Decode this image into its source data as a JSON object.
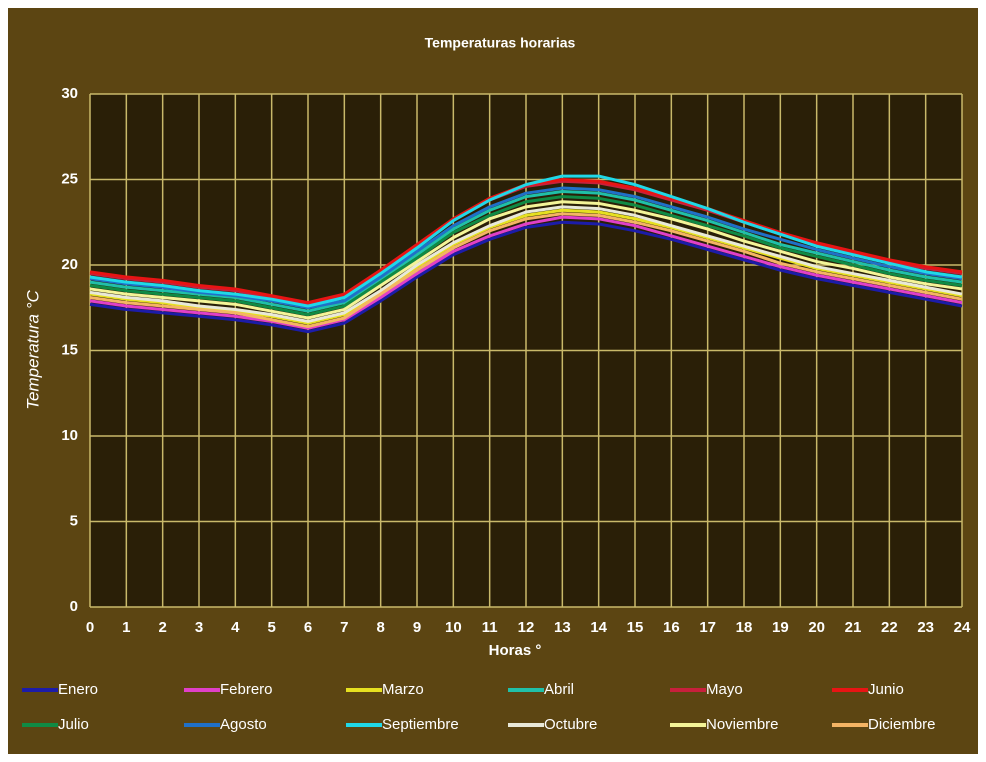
{
  "chart_data": {
    "type": "line",
    "title": "Temperaturas horarias",
    "x_label": "Horas °",
    "y_label": "Temperatura °C",
    "x": [
      0,
      1,
      2,
      3,
      4,
      5,
      6,
      7,
      8,
      9,
      10,
      11,
      12,
      13,
      14,
      15,
      16,
      17,
      18,
      19,
      20,
      21,
      22,
      23,
      24
    ],
    "xlim": [
      0,
      24
    ],
    "xticks": [
      0,
      1,
      2,
      3,
      4,
      5,
      6,
      7,
      8,
      9,
      10,
      11,
      12,
      13,
      14,
      15,
      16,
      17,
      18,
      19,
      20,
      21,
      22,
      23,
      24
    ],
    "ylim": [
      0,
      30
    ],
    "yticks": [
      0,
      5,
      10,
      15,
      20,
      25,
      30
    ],
    "grid": true,
    "legend": "bottom",
    "series": [
      {
        "name": "Enero",
        "color": "#1c1ca8",
        "values": [
          17.7,
          17.4,
          17.2,
          17.0,
          16.8,
          16.5,
          16.1,
          16.6,
          17.9,
          19.3,
          20.6,
          21.5,
          22.2,
          22.5,
          22.4,
          22.0,
          21.5,
          20.9,
          20.3,
          19.7,
          19.2,
          18.8,
          18.4,
          18.0,
          17.6
        ]
      },
      {
        "name": "Febrero",
        "color": "#e040c8",
        "values": [
          17.9,
          17.6,
          17.4,
          17.2,
          17.0,
          16.7,
          16.3,
          16.8,
          18.1,
          19.5,
          20.8,
          21.7,
          22.4,
          22.8,
          22.7,
          22.3,
          21.7,
          21.1,
          20.5,
          19.9,
          19.4,
          19.0,
          18.6,
          18.2,
          17.8
        ]
      },
      {
        "name": "Marzo",
        "color": "#e6e020",
        "values": [
          18.3,
          18.0,
          17.8,
          17.5,
          17.3,
          17.0,
          16.6,
          17.1,
          18.4,
          19.9,
          21.2,
          22.2,
          22.9,
          23.2,
          23.1,
          22.7,
          22.2,
          21.6,
          21.0,
          20.4,
          19.8,
          19.4,
          19.0,
          18.6,
          18.2
        ]
      },
      {
        "name": "Abril",
        "color": "#20c0a8",
        "values": [
          19.0,
          18.7,
          18.5,
          18.3,
          18.1,
          17.7,
          17.3,
          17.8,
          19.2,
          20.6,
          22.1,
          23.2,
          24.0,
          24.3,
          24.2,
          23.8,
          23.2,
          22.6,
          21.9,
          21.2,
          20.7,
          20.2,
          19.7,
          19.3,
          19.0
        ]
      },
      {
        "name": "Mayo",
        "color": "#c8203c",
        "values": [
          19.5,
          19.2,
          19.0,
          18.7,
          18.5,
          18.1,
          17.7,
          18.2,
          19.6,
          21.1,
          22.6,
          23.8,
          24.6,
          24.9,
          24.8,
          24.4,
          23.8,
          23.2,
          22.5,
          21.8,
          21.2,
          20.7,
          20.2,
          19.8,
          19.5
        ]
      },
      {
        "name": "Junio",
        "color": "#e81414",
        "values": [
          19.6,
          19.3,
          19.1,
          18.8,
          18.6,
          18.2,
          17.8,
          18.3,
          19.7,
          21.2,
          22.7,
          23.9,
          24.7,
          25.0,
          24.9,
          24.5,
          23.9,
          23.3,
          22.6,
          21.9,
          21.3,
          20.8,
          20.3,
          19.9,
          19.6
        ]
      },
      {
        "name": "Julio",
        "color": "#108a44",
        "values": [
          18.8,
          18.5,
          18.3,
          18.1,
          17.9,
          17.5,
          17.1,
          17.6,
          19.0,
          20.4,
          21.9,
          22.9,
          23.7,
          24.0,
          23.9,
          23.5,
          22.9,
          22.3,
          21.7,
          21.0,
          20.5,
          20.0,
          19.5,
          19.1,
          18.8
        ]
      },
      {
        "name": "Agosto",
        "color": "#2070c8",
        "values": [
          19.2,
          18.9,
          18.7,
          18.4,
          18.2,
          17.9,
          17.5,
          17.9,
          19.3,
          20.8,
          22.3,
          23.4,
          24.2,
          24.5,
          24.4,
          24.0,
          23.4,
          22.8,
          22.1,
          21.5,
          20.9,
          20.4,
          19.9,
          19.5,
          19.2
        ]
      },
      {
        "name": "Septiembre",
        "color": "#20d8e8",
        "values": [
          19.3,
          19.0,
          18.8,
          18.5,
          18.3,
          18.0,
          17.6,
          18.1,
          19.5,
          21.0,
          22.6,
          23.8,
          24.7,
          25.2,
          25.2,
          24.7,
          24.0,
          23.3,
          22.5,
          21.8,
          21.1,
          20.6,
          20.1,
          19.6,
          19.3
        ]
      },
      {
        "name": "Octubre",
        "color": "#e8e8d8",
        "values": [
          18.4,
          18.1,
          17.9,
          17.6,
          17.4,
          17.1,
          16.7,
          17.2,
          18.5,
          20.0,
          21.3,
          22.3,
          23.1,
          23.4,
          23.3,
          22.9,
          22.3,
          21.7,
          21.1,
          20.5,
          19.9,
          19.5,
          19.1,
          18.7,
          18.3
        ]
      },
      {
        "name": "Noviembre",
        "color": "#f4f498",
        "values": [
          18.6,
          18.3,
          18.1,
          17.9,
          17.7,
          17.3,
          16.9,
          17.4,
          18.8,
          20.2,
          21.6,
          22.7,
          23.4,
          23.7,
          23.6,
          23.2,
          22.7,
          22.1,
          21.4,
          20.8,
          20.2,
          19.8,
          19.3,
          18.9,
          18.6
        ]
      },
      {
        "name": "Diciembre",
        "color": "#f4b464",
        "values": [
          18.1,
          17.8,
          17.6,
          17.4,
          17.2,
          16.8,
          16.4,
          16.9,
          18.3,
          19.7,
          21.0,
          22.0,
          22.7,
          23.0,
          22.9,
          22.5,
          22.0,
          21.4,
          20.8,
          20.1,
          19.6,
          19.2,
          18.8,
          18.4,
          18.0
        ]
      }
    ]
  }
}
